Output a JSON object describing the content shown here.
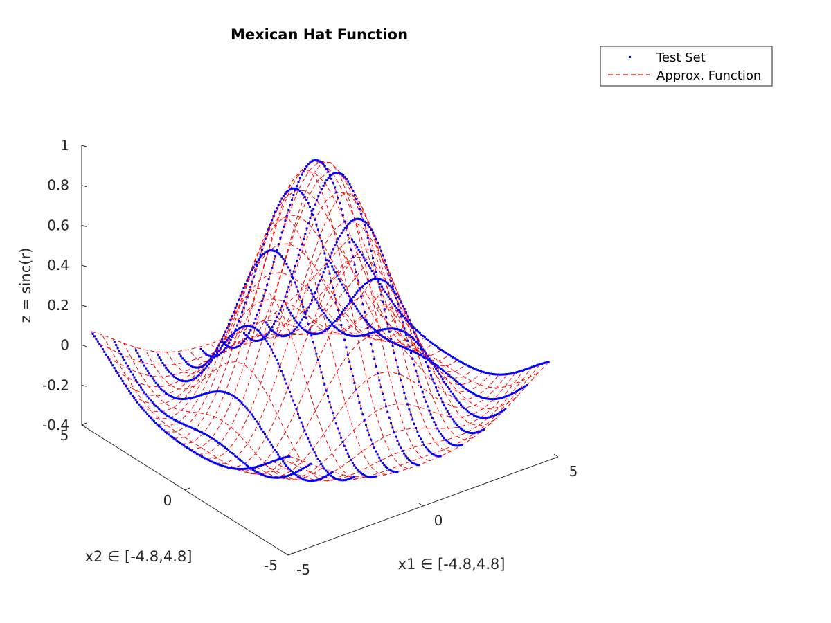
{
  "chart_data": {
    "type": "surface3d",
    "title": "Mexican Hat Function",
    "xlabel": "x1 ∈ [-4.8,4.8]",
    "ylabel": "x2 ∈ [-4.8,4.8]",
    "zlabel": "z = sinc(r)",
    "xlim": [
      -5,
      5
    ],
    "ylim": [
      -5,
      5
    ],
    "zlim": [
      -0.4,
      1
    ],
    "xticks": [
      -5,
      0,
      5
    ],
    "yticks": [
      -5,
      0,
      5
    ],
    "zticks": [
      -0.4,
      -0.2,
      0,
      0.2,
      0.4,
      0.6,
      0.8,
      1
    ],
    "xtick_labels": [
      "-5",
      "0",
      "5"
    ],
    "ytick_labels": [
      "-5",
      "0",
      "5"
    ],
    "ztick_labels": [
      "-0.4",
      "-0.2",
      "0",
      "0.2",
      "0.4",
      "0.6",
      "0.8",
      "1"
    ],
    "function": "z = sin(r)/r, r = sqrt(x1^2 + x2^2)",
    "domain": [
      -4.8,
      4.8
    ],
    "grid_points": 25,
    "legend_position": "top-right",
    "series": [
      {
        "name": "Test Set",
        "style": "dotted markers",
        "color": "#0000ff"
      },
      {
        "name": "Approx. Function",
        "style": "dashed mesh",
        "color": "#ff0000"
      }
    ]
  }
}
